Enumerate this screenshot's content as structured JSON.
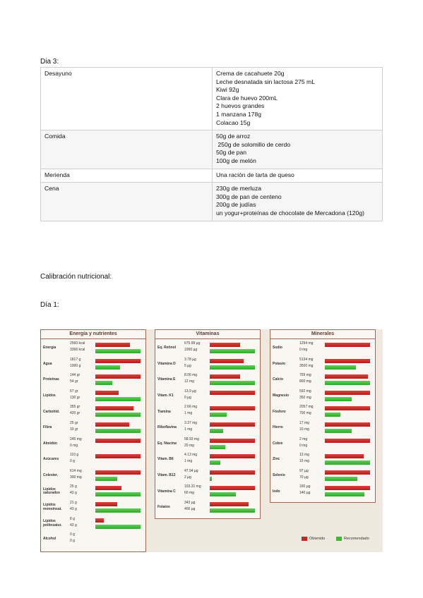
{
  "day_heading": "Dia 3:",
  "meal_table": {
    "rows": [
      {
        "meal": "Desayuno",
        "items": [
          "Crema de cacahuete 20g",
          "Leche desnatada sin lactosa 275 mL",
          "Kiwi 92g",
          "Clara de huevo 200mL",
          "2 huevos grandes",
          "1 manzana 178g",
          "Colacao 15g"
        ]
      },
      {
        "meal": "Comida",
        "items": [
          "50g de arroz",
          " 250g de solomillo de cerdo",
          "50g de pan",
          "100g de melón"
        ]
      },
      {
        "meal": "Merienda",
        "items": [
          "Una ración de tarta de queso"
        ]
      },
      {
        "meal": "Cena",
        "items": [
          "230g de merluza",
          "300g de pan de centeno",
          "200g de judías",
          "un yogur+proteínas de chocolate de Mercadona (120g)"
        ]
      }
    ]
  },
  "section_heading": "Calibración nutricional:",
  "day1_heading": "Día 1:",
  "nutrition_chart": {
    "panels": [
      {
        "title": "Energía y nutrientes",
        "rows": [
          {
            "name": "Energía",
            "obtained": {
              "value": 2560,
              "label": "2560 kcal"
            },
            "recommended": {
              "value": 3366,
              "label": "3366 kcal"
            }
          },
          {
            "name": "Agua",
            "obtained": {
              "value": 1817,
              "label": "1817 g"
            },
            "recommended": {
              "value": 1000,
              "label": "1000 g"
            }
          },
          {
            "name": "Proteínas",
            "obtained": {
              "value": 144,
              "label": "144 gr"
            },
            "recommended": {
              "value": 54,
              "label": "54 gr"
            }
          },
          {
            "name": "Lípidos",
            "obtained": {
              "value": 67,
              "label": "67 gr"
            },
            "recommended": {
              "value": 130,
              "label": "130 gr"
            }
          },
          {
            "name": "Carbohid.",
            "obtained": {
              "value": 355,
              "label": "355 gr"
            },
            "recommended": {
              "value": 420,
              "label": "420 gr"
            }
          },
          {
            "name": "Fibra",
            "obtained": {
              "value": 25,
              "label": "25 gr"
            },
            "recommended": {
              "value": 33,
              "label": "33 gr"
            }
          },
          {
            "name": "Almidón",
            "obtained": {
              "value": 245,
              "label": "245 mg"
            },
            "recommended": {
              "value": 0,
              "label": "0 mg"
            }
          },
          {
            "name": "Azúcares",
            "obtained": {
              "value": 110,
              "label": "110 g"
            },
            "recommended": {
              "value": 0,
              "label": "0 g"
            }
          },
          {
            "name": "Colester.",
            "obtained": {
              "value": 614,
              "label": "614 mg"
            },
            "recommended": {
              "value": 300,
              "label": "300 mg"
            }
          },
          {
            "name": "Lípidos saturados",
            "obtained": {
              "value": 25,
              "label": "25 g"
            },
            "recommended": {
              "value": 43,
              "label": "43 g"
            }
          },
          {
            "name": "Lípidos monoinsat.",
            "obtained": {
              "value": 21,
              "label": "21 g"
            },
            "recommended": {
              "value": 43,
              "label": "43 g"
            }
          },
          {
            "name": "Lípidos poliinsatur.",
            "obtained": {
              "value": 8,
              "label": "8 g"
            },
            "recommended": {
              "value": 43,
              "label": "43 g"
            }
          },
          {
            "name": "Alcohol",
            "obtained": {
              "value": 0,
              "label": "0 g"
            },
            "recommended": {
              "value": 0,
              "label": "0 g"
            }
          }
        ]
      },
      {
        "title": "Vitaminas",
        "rows": [
          {
            "name": "Eq. Retinol",
            "obtained": {
              "value": 675.99,
              "label": "675.99 µg"
            },
            "recommended": {
              "value": 1000,
              "label": "1000 µg"
            }
          },
          {
            "name": "Vitamina D",
            "obtained": {
              "value": 3.78,
              "label": "3.78 µg"
            },
            "recommended": {
              "value": 5,
              "label": "5 µg"
            }
          },
          {
            "name": "Vitamina E",
            "obtained": {
              "value": 8.06,
              "label": "8.06 mg"
            },
            "recommended": {
              "value": 12,
              "label": "12 mg"
            }
          },
          {
            "name": "Vitam. K1",
            "obtained": {
              "value": 13.9,
              "label": "13.9 µg"
            },
            "recommended": {
              "value": 0,
              "label": "0 µg"
            }
          },
          {
            "name": "Tiamina",
            "obtained": {
              "value": 2.66,
              "label": "2.66 mg"
            },
            "recommended": {
              "value": 1,
              "label": "1 mg"
            }
          },
          {
            "name": "Riboflavina",
            "obtained": {
              "value": 3.37,
              "label": "3.37 mg"
            },
            "recommended": {
              "value": 1,
              "label": "1 mg"
            }
          },
          {
            "name": "Eq. Niacina",
            "obtained": {
              "value": 58.93,
              "label": "58.93 mg"
            },
            "recommended": {
              "value": 20,
              "label": "20 mg"
            }
          },
          {
            "name": "Vitam. B6",
            "obtained": {
              "value": 4.13,
              "label": "4.13 mg"
            },
            "recommended": {
              "value": 1,
              "label": "1 mg"
            }
          },
          {
            "name": "Vitam. B12",
            "obtained": {
              "value": 47.94,
              "label": "47.94 µg"
            },
            "recommended": {
              "value": 2,
              "label": "2 µg"
            }
          },
          {
            "name": "Vitamina C",
            "obtained": {
              "value": 103.31,
              "label": "103.31 mg"
            },
            "recommended": {
              "value": 60,
              "label": "60 mg"
            }
          },
          {
            "name": "Folatos",
            "obtained": {
              "value": 343,
              "label": "343 µg"
            },
            "recommended": {
              "value": 400,
              "label": "400 µg"
            }
          }
        ]
      },
      {
        "title": "Minerales",
        "rows": [
          {
            "name": "Sodio",
            "obtained": {
              "value": 1294,
              "label": "1294 mg"
            },
            "recommended": {
              "value": 0,
              "label": "0 mg"
            }
          },
          {
            "name": "Potasio",
            "obtained": {
              "value": 5134,
              "label": "5134 mg"
            },
            "recommended": {
              "value": 3500,
              "label": "3500 mg"
            }
          },
          {
            "name": "Calcio",
            "obtained": {
              "value": 759,
              "label": "759 mg"
            },
            "recommended": {
              "value": 800,
              "label": "800 mg"
            }
          },
          {
            "name": "Magnesio",
            "obtained": {
              "value": 592,
              "label": "592 mg"
            },
            "recommended": {
              "value": 350,
              "label": "350 mg"
            }
          },
          {
            "name": "Fósforo",
            "obtained": {
              "value": 2057,
              "label": "2057 mg"
            },
            "recommended": {
              "value": 700,
              "label": "700 mg"
            }
          },
          {
            "name": "Hierro",
            "obtained": {
              "value": 17,
              "label": "17 mg"
            },
            "recommended": {
              "value": 10,
              "label": "10 mg"
            }
          },
          {
            "name": "Cobre",
            "obtained": {
              "value": 2,
              "label": "2 mg"
            },
            "recommended": {
              "value": 0,
              "label": "0 mg"
            }
          },
          {
            "name": "Zinc",
            "obtained": {
              "value": 13,
              "label": "13 mg"
            },
            "recommended": {
              "value": 15,
              "label": "15 mg"
            }
          },
          {
            "name": "Selenio",
            "obtained": {
              "value": 97,
              "label": "97 µg"
            },
            "recommended": {
              "value": 70,
              "label": "70 µg"
            }
          },
          {
            "name": "Iodo",
            "obtained": {
              "value": 160,
              "label": "160 µg"
            },
            "recommended": {
              "value": 140,
              "label": "140 µg"
            }
          }
        ]
      }
    ],
    "legend": {
      "obtained": "Obtenido",
      "recommended": "Recomendado"
    }
  }
}
